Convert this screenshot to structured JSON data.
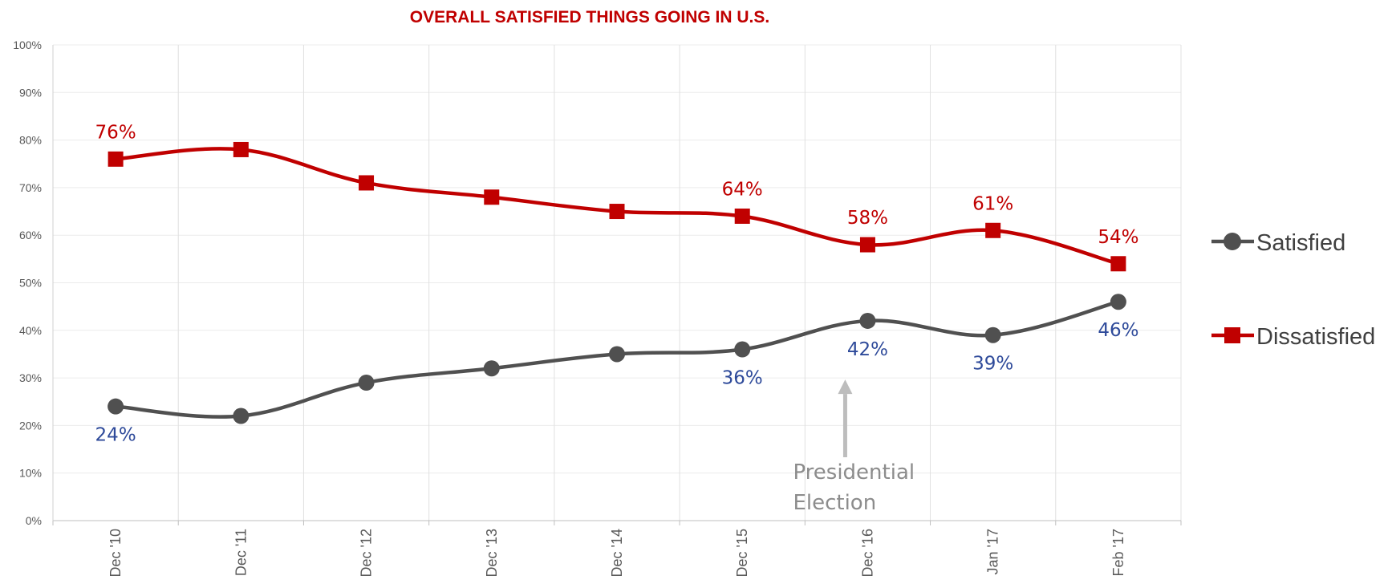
{
  "chart_data": {
    "type": "line",
    "title": "OVERALL SATISFIED THINGS GOING IN U.S.",
    "xlabel": "",
    "ylabel": "",
    "categories": [
      "Dec '10",
      "Dec '11",
      "Dec '12",
      "Dec '13",
      "Dec '14",
      "Dec '15",
      "Dec '16",
      "Jan '17",
      "Feb '17"
    ],
    "ylim": [
      0,
      100
    ],
    "y_ticks": [
      "0%",
      "10%",
      "20%",
      "30%",
      "40%",
      "50%",
      "60%",
      "70%",
      "80%",
      "90%",
      "100%"
    ],
    "grid": true,
    "legend_position": "right",
    "series": [
      {
        "name": "Satisfied",
        "color": "#505050",
        "marker": "circle",
        "values": [
          24,
          22,
          29,
          32,
          35,
          36,
          42,
          39,
          46
        ],
        "labels": [
          "24%",
          "",
          "",
          "",
          "",
          "36%",
          "42%",
          "39%",
          "46%"
        ],
        "label_color": "#2e4a9a"
      },
      {
        "name": "Dissatisfied",
        "color": "#c00000",
        "marker": "square",
        "values": [
          76,
          78,
          71,
          68,
          65,
          64,
          58,
          61,
          54
        ],
        "labels": [
          "76%",
          "",
          "",
          "",
          "",
          "64%",
          "58%",
          "61%",
          "54%"
        ],
        "label_color": "#c00000"
      }
    ],
    "annotation": {
      "lines": [
        "Presidential",
        "Election"
      ],
      "category": "Dec '16",
      "arrow_to_value": 30
    }
  }
}
